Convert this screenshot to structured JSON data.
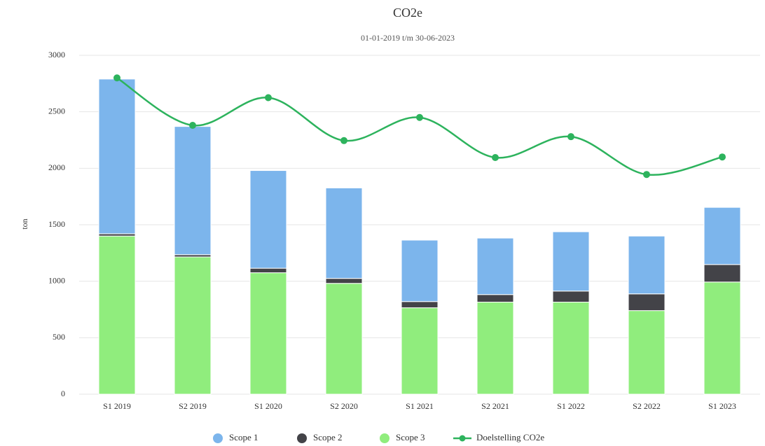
{
  "chart_data": {
    "type": "bar",
    "stacked": true,
    "title": "CO2e",
    "subtitle": "01-01-2019 t/m 30-06-2023",
    "y_label": "ton",
    "categories": [
      "S1 2019",
      "S2 2019",
      "S1 2020",
      "S2 2020",
      "S1 2021",
      "S2 2021",
      "S1 2022",
      "S2 2022",
      "S1 2023"
    ],
    "series": [
      {
        "name": "Scope 1",
        "color": "#7cb5ec",
        "values": [
          1370,
          1135,
          865,
          801,
          544,
          500,
          525,
          512,
          506
        ]
      },
      {
        "name": "Scope 2",
        "color": "#434348",
        "values": [
          20,
          20,
          40,
          44,
          55,
          67,
          98,
          148,
          155
        ]
      },
      {
        "name": "Scope 3",
        "color": "#90ed7d",
        "values": [
          1400,
          1215,
          1075,
          981,
          765,
          815,
          815,
          740,
          993
        ]
      },
      {
        "name": "Doelstelling CO2e",
        "color": "#2db35d",
        "type": "line",
        "values": [
          2800,
          2380,
          2625,
          2245,
          2450,
          2095,
          2280,
          1945,
          2100
        ]
      }
    ],
    "ylim": [
      0,
      3000
    ],
    "yticks": [
      0,
      500,
      1000,
      1500,
      2000,
      2500,
      3000
    ],
    "grid": true
  }
}
